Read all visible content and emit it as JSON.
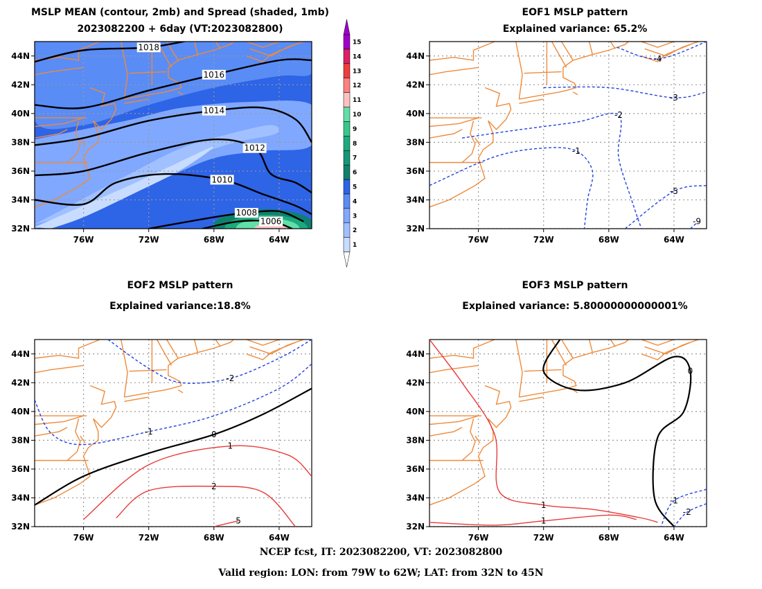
{
  "panels": [
    {
      "id": "mean",
      "title_line1": "MSLP MEAN (contour, 2mb) and Spread (shaded, 1mb)",
      "title_line2": "2023082200 + 6day (VT:2023082800)"
    },
    {
      "id": "eof1",
      "title_line1": "EOF1 MSLP pattern",
      "title_line2": "Explained variance: 65.2%"
    },
    {
      "id": "eof2",
      "title_line1": "EOF2 MSLP pattern",
      "title_line2": "Explained variance:18.8%"
    },
    {
      "id": "eof3",
      "title_line1": "EOF3 MSLP pattern",
      "title_line2": "Explained variance: 5.80000000000001%"
    }
  ],
  "footer": {
    "line1": "NCEP fcst, IT: 2023082200, VT: 2023082800",
    "line2": "Valid region: LON: from 79W to 62W; LAT: from 32N to 45N"
  },
  "chart_data": [
    {
      "type": "heatmap",
      "title": "MSLP MEAN (contour, 2mb) and Spread (shaded, 1mb)",
      "subtitle": "2023082200 + 6day (VT:2023082800)",
      "xlim": [
        -79,
        -62
      ],
      "ylim": [
        32,
        45
      ],
      "x_ticks": [
        "76W",
        "72W",
        "68W",
        "64W"
      ],
      "y_ticks": [
        "32N",
        "34N",
        "36N",
        "38N",
        "40N",
        "42N",
        "44N"
      ],
      "grid": true,
      "colorbar": {
        "levels": [
          1,
          2,
          3,
          4,
          5,
          6,
          7,
          8,
          9,
          10,
          11,
          12,
          13,
          14,
          15
        ],
        "colors": [
          "#c8dcff",
          "#a0c0ff",
          "#80a8ff",
          "#5a8cf5",
          "#2e64e6",
          "#10806e",
          "#149678",
          "#1caa7c",
          "#34c88c",
          "#60e0a8",
          "#ffc0c0",
          "#ff8080",
          "#f03c3c",
          "#dc1e64",
          "#a000c8"
        ],
        "arrows": "both"
      },
      "contours_mb": [
        {
          "value": 1018,
          "label": "1018",
          "points": [
            [
              -79,
              43.6
            ],
            [
              -76,
              44.4
            ],
            [
              -72,
              44.6
            ],
            [
              -69,
              45.2
            ]
          ]
        },
        {
          "value": 1016,
          "label": "1016",
          "points": [
            [
              -79,
              40.6
            ],
            [
              -76,
              40.4
            ],
            [
              -72,
              41.6
            ],
            [
              -68,
              42.7
            ],
            [
              -64,
              43.7
            ],
            [
              -62,
              43.7
            ]
          ]
        },
        {
          "value": 1014,
          "label": "1014",
          "points": [
            [
              -79,
              37.8
            ],
            [
              -76,
              38.3
            ],
            [
              -72,
              39.5
            ],
            [
              -68,
              40.2
            ],
            [
              -65,
              40.4
            ],
            [
              -63,
              39.6
            ],
            [
              -62,
              38
            ]
          ]
        },
        {
          "value": 1012,
          "label": "1012",
          "points": [
            [
              -79,
              35.7
            ],
            [
              -76,
              36
            ],
            [
              -72,
              37.3
            ],
            [
              -68,
              38.2
            ],
            [
              -65.5,
              37.6
            ],
            [
              -64.5,
              35.8
            ],
            [
              -63,
              35.2
            ],
            [
              -62,
              34.5
            ]
          ]
        },
        {
          "value": 1010,
          "label": "1010",
          "points": [
            [
              -79,
              34
            ],
            [
              -76,
              33.7
            ],
            [
              -74,
              35.2
            ],
            [
              -71,
              35.8
            ],
            [
              -67.5,
              35.4
            ],
            [
              -65,
              34.4
            ],
            [
              -63,
              33.6
            ],
            [
              -62,
              33
            ]
          ]
        },
        {
          "value": 1008,
          "label": "1008",
          "points": [
            [
              -72,
              32
            ],
            [
              -68,
              32.8
            ],
            [
              -66,
              33.1
            ],
            [
              -64,
              33.2
            ],
            [
              -62.5,
              32.5
            ]
          ]
        },
        {
          "value": 1006,
          "label": "1006",
          "points": [
            [
              -68.7,
              32
            ],
            [
              -66.5,
              32.5
            ],
            [
              -64.5,
              32.5
            ],
            [
              -63.2,
              32
            ]
          ]
        }
      ],
      "spread_regions_mb": [
        {
          "level": 1,
          "note": "light band along coast",
          "points": [
            [
              -79,
              32.6
            ],
            [
              -76,
              34.5
            ],
            [
              -72,
              36.5
            ],
            [
              -68,
              37.8
            ],
            [
              -64,
              38.5
            ],
            [
              -62,
              38.8
            ]
          ]
        },
        {
          "level": 9,
          "center": [
            -65,
            32.3
          ]
        },
        {
          "level": 10,
          "center": [
            -64.6,
            32.2
          ]
        }
      ]
    },
    {
      "type": "heatmap",
      "title": "EOF1 MSLP pattern",
      "subtitle": "Explained variance: 65.2%",
      "xlim": [
        -79,
        -62
      ],
      "ylim": [
        32,
        45
      ],
      "x_ticks": [
        "76W",
        "72W",
        "68W",
        "64W"
      ],
      "y_ticks": [
        "32N",
        "34N",
        "36N",
        "38N",
        "40N",
        "42N",
        "44N"
      ],
      "grid": true,
      "contours": [
        {
          "value": -1,
          "label": "-1",
          "points": [
            [
              -79,
              35
            ],
            [
              -75,
              37
            ],
            [
              -72,
              37.6
            ],
            [
              -70,
              37.4
            ],
            [
              -69,
              36
            ],
            [
              -69.3,
              34
            ],
            [
              -69.5,
              32
            ]
          ]
        },
        {
          "value": -2,
          "label": "-2",
          "points": [
            [
              -77,
              38.3
            ],
            [
              -74,
              38.8
            ],
            [
              -70,
              39.4
            ],
            [
              -67.4,
              39.9
            ],
            [
              -67.4,
              37
            ],
            [
              -66.6,
              34
            ],
            [
              -66,
              32
            ]
          ]
        },
        {
          "value": -3,
          "label": "-3",
          "points": [
            [
              -72,
              41.8
            ],
            [
              -68,
              41.8
            ],
            [
              -64,
              41.1
            ],
            [
              -62,
              41.5
            ]
          ]
        },
        {
          "value": -4,
          "label": "-4",
          "points": [
            [
              -67.5,
              44.6
            ],
            [
              -65,
              43.8
            ],
            [
              -62,
              45
            ]
          ]
        },
        {
          "value": -5,
          "label": "-5",
          "points": [
            [
              -67,
              32
            ],
            [
              -64,
              34.6
            ],
            [
              -62,
              35
            ]
          ]
        },
        {
          "value": -9,
          "label": "-9",
          "points": [
            [
              -63,
              32
            ],
            [
              -62.5,
              32.5
            ]
          ]
        }
      ]
    },
    {
      "type": "heatmap",
      "title": "EOF2 MSLP pattern",
      "subtitle": "Explained variance:18.8%",
      "xlim": [
        -79,
        -62
      ],
      "ylim": [
        32,
        45
      ],
      "x_ticks": [
        "76W",
        "72W",
        "68W",
        "64W"
      ],
      "y_ticks": [
        "32N",
        "34N",
        "36N",
        "38N",
        "40N",
        "42N",
        "44N"
      ],
      "grid": true,
      "contours": [
        {
          "value": -2,
          "label": "-2",
          "points": [
            [
              -74.5,
              45
            ],
            [
              -72,
              43
            ],
            [
              -70,
              42
            ],
            [
              -67,
              42.3
            ],
            [
              -64,
              43.7
            ],
            [
              -62,
              45
            ]
          ]
        },
        {
          "value": -1,
          "label": "-1",
          "points": [
            [
              -79,
              40.8
            ],
            [
              -78,
              38.5
            ],
            [
              -76,
              37.7
            ],
            [
              -72,
              38.6
            ],
            [
              -68,
              39.7
            ],
            [
              -64,
              41.6
            ],
            [
              -62,
              43.3
            ]
          ]
        },
        {
          "value": 0,
          "label": "0",
          "points": [
            [
              -79,
              33.5
            ],
            [
              -76,
              35.5
            ],
            [
              -72,
              37.1
            ],
            [
              -68,
              38.4
            ],
            [
              -65,
              39.8
            ],
            [
              -62,
              41.6
            ]
          ]
        },
        {
          "value": 1,
          "label": "1",
          "points": [
            [
              -76,
              32.5
            ],
            [
              -72,
              36.3
            ],
            [
              -67,
              37.6
            ],
            [
              -63.5,
              37
            ],
            [
              -62,
              35.5
            ]
          ]
        },
        {
          "value": 2,
          "label": "2",
          "points": [
            [
              -74,
              32.6
            ],
            [
              -72,
              34.5
            ],
            [
              -68,
              34.8
            ],
            [
              -65,
              34.4
            ],
            [
              -63,
              32
            ]
          ]
        },
        {
          "value": 5,
          "label": "5",
          "points": [
            [
              -68,
              32
            ],
            [
              -66.5,
              32.4
            ]
          ]
        }
      ]
    },
    {
      "type": "heatmap",
      "title": "EOF3 MSLP pattern",
      "subtitle": "Explained variance: 5.80000000000001%",
      "xlim": [
        -79,
        -62
      ],
      "ylim": [
        32,
        45
      ],
      "x_ticks": [
        "76W",
        "72W",
        "68W",
        "64W"
      ],
      "y_ticks": [
        "32N",
        "34N",
        "36N",
        "38N",
        "40N",
        "42N",
        "44N"
      ],
      "grid": true,
      "contours": [
        {
          "value": 0,
          "label": "0",
          "points": [
            [
              -71,
              45
            ],
            [
              -72,
              42.8
            ],
            [
              -70,
              41.5
            ],
            [
              -67,
              42
            ],
            [
              -64,
              43.8
            ],
            [
              -63,
              42.8
            ],
            [
              -63.4,
              40
            ],
            [
              -65,
              38.2
            ],
            [
              -65.2,
              34
            ],
            [
              -64,
              32
            ]
          ]
        },
        {
          "value": 1,
          "label": "1",
          "points": [
            [
              -79,
              45
            ],
            [
              -77,
              42
            ],
            [
              -75,
              38.4
            ],
            [
              -74.7,
              34.4
            ],
            [
              -72,
              33.5
            ],
            [
              -69,
              33.2
            ],
            [
              -66,
              32.6
            ],
            [
              -65,
              32.3
            ]
          ]
        },
        {
          "value": 1,
          "label": "1",
          "points": [
            [
              -79,
              32.3
            ],
            [
              -75,
              32.1
            ],
            [
              -72,
              32.4
            ],
            [
              -68,
              32.8
            ],
            [
              -66.3,
              32.5
            ]
          ]
        },
        {
          "value": -1,
          "label": "-1",
          "points": [
            [
              -62,
              34.6
            ],
            [
              -64,
              33.8
            ],
            [
              -64.8,
              32
            ]
          ]
        },
        {
          "value": -2,
          "label": "-2",
          "points": [
            [
              -62,
              33.6
            ],
            [
              -63.2,
              33
            ],
            [
              -64,
              32
            ]
          ]
        }
      ]
    }
  ]
}
